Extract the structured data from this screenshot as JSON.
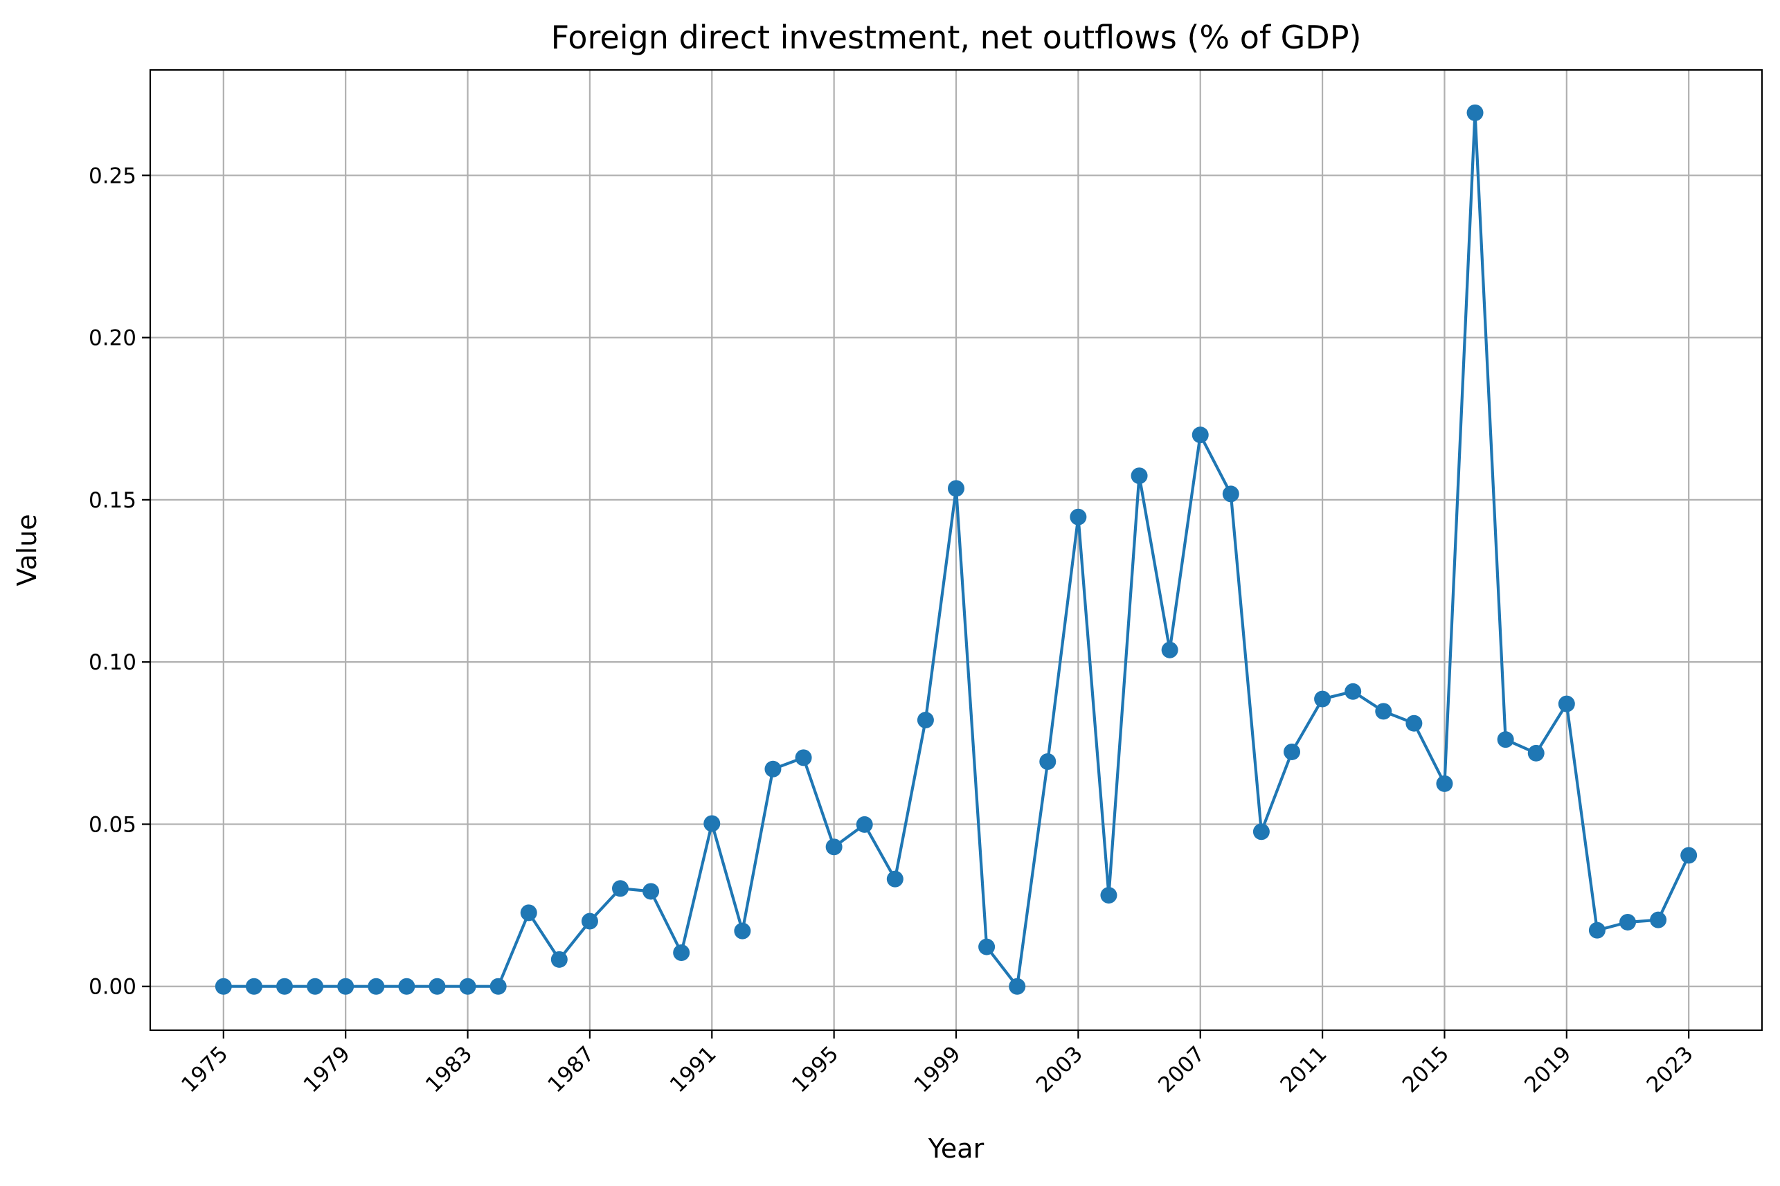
{
  "chart_data": {
    "type": "line",
    "title": "Foreign direct investment, net outflows (% of GDP)",
    "xlabel": "Year",
    "ylabel": "Value",
    "xlim": [
      1972.6,
      2025.4
    ],
    "ylim": [
      -0.0135,
      0.2825
    ],
    "grid": true,
    "color": "#1f77b4",
    "x_ticks": [
      "1975",
      "1979",
      "1983",
      "1987",
      "1991",
      "1995",
      "1999",
      "2003",
      "2007",
      "2011",
      "2015",
      "2019",
      "2023"
    ],
    "y_ticks": [
      "0.00",
      "0.05",
      "0.10",
      "0.15",
      "0.20",
      "0.25"
    ],
    "series": [
      {
        "x": [
          1975,
          1976,
          1977,
          1978,
          1979,
          1980,
          1981,
          1982,
          1983,
          1984,
          1985,
          1986,
          1987,
          1988,
          1989,
          1990,
          1991,
          1992,
          1993,
          1994,
          1995,
          1996,
          1997,
          1998,
          1999,
          2000,
          2001,
          2002,
          2003,
          2004,
          2005,
          2006,
          2007,
          2008,
          2009,
          2010,
          2011,
          2012,
          2013,
          2014,
          2015,
          2016,
          2017,
          2018,
          2019,
          2020,
          2021,
          2022,
          2023
        ],
        "values": [
          0.0,
          0.0,
          0.0,
          0.0,
          0.0,
          0.0,
          0.0,
          0.0,
          0.0,
          0.0,
          0.0227,
          0.0083,
          0.0201,
          0.0302,
          0.0293,
          0.0104,
          0.0502,
          0.0171,
          0.067,
          0.0705,
          0.043,
          0.0499,
          0.0331,
          0.0821,
          0.1535,
          0.0122,
          0.0,
          0.0693,
          0.1447,
          0.0281,
          0.1574,
          0.1037,
          0.17,
          0.1518,
          0.0477,
          0.0723,
          0.0886,
          0.0909,
          0.0848,
          0.0811,
          0.0625,
          0.2693,
          0.0761,
          0.0719,
          0.0871,
          0.0173,
          0.0198,
          0.0205,
          0.0404
        ]
      }
    ]
  }
}
